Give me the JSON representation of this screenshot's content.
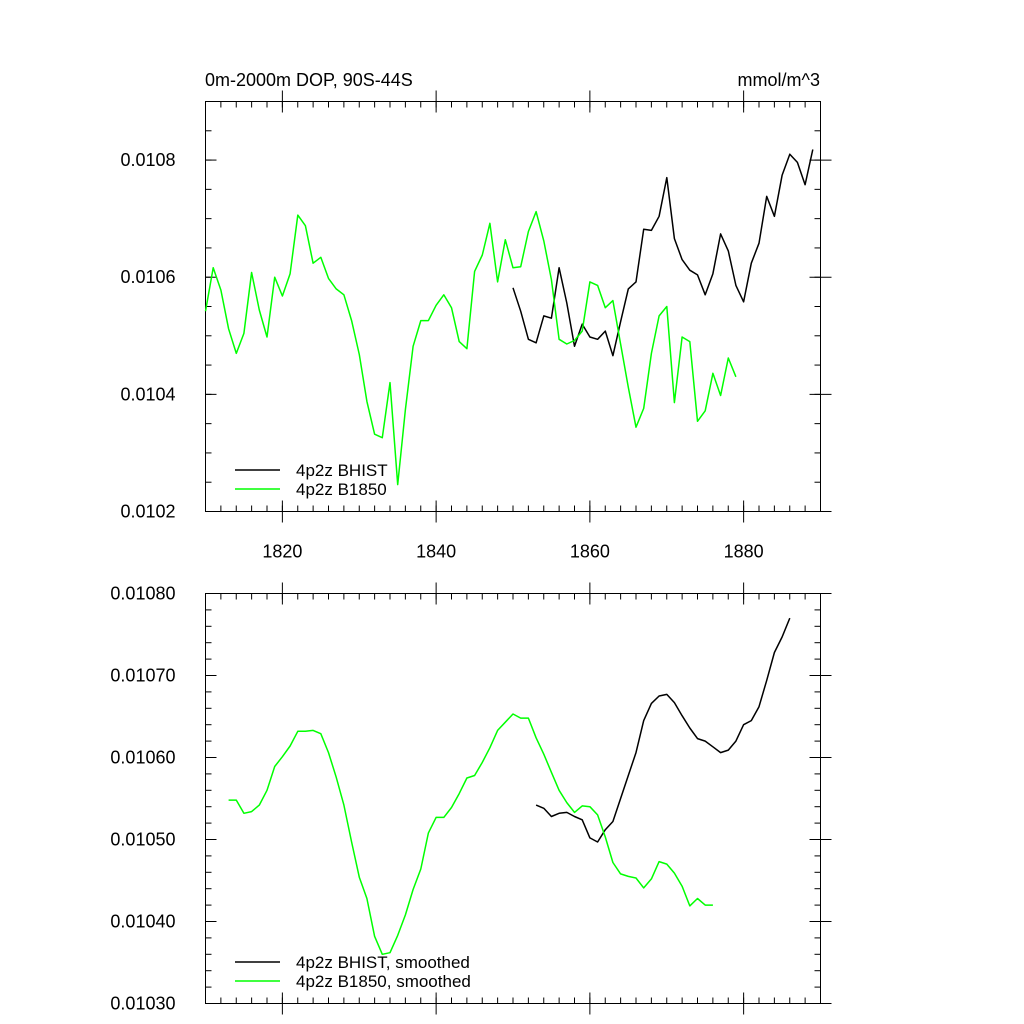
{
  "chart_data": [
    {
      "type": "line",
      "title_left": "0m-2000m DOP, 90S-44S",
      "title_right": "mmol/m^3",
      "xlim": [
        1810,
        1890
      ],
      "ylim": [
        0.0102,
        0.0109
      ],
      "xticks": [
        1820,
        1840,
        1860,
        1880
      ],
      "xtick_labels": [
        "1820",
        "1840",
        "1860",
        "1880"
      ],
      "yticks": [
        0.0102,
        0.0104,
        0.0106,
        0.0108
      ],
      "ytick_labels": [
        "0.0102",
        "0.0104",
        "0.0106",
        "0.0108"
      ],
      "xminor": 2,
      "yminor": 5e-05,
      "grid": false,
      "legend_position": "bottom-left",
      "series": [
        {
          "name": "4p2z BHIST",
          "color": "#000000",
          "x": [
            1850,
            1851,
            1852,
            1853,
            1854,
            1855,
            1856,
            1857,
            1858,
            1859,
            1860,
            1861,
            1862,
            1863,
            1864,
            1865,
            1866,
            1867,
            1868,
            1869,
            1870,
            1871,
            1872,
            1873,
            1874,
            1875,
            1876,
            1877,
            1878,
            1879,
            1880,
            1881,
            1882,
            1883,
            1884,
            1885,
            1886,
            1887,
            1888,
            1889
          ],
          "y": [
            0.010582,
            0.010542,
            0.010494,
            0.010488,
            0.010534,
            0.01053,
            0.010616,
            0.010556,
            0.010482,
            0.01052,
            0.010498,
            0.010494,
            0.010508,
            0.010466,
            0.010524,
            0.01058,
            0.010592,
            0.010682,
            0.01068,
            0.010704,
            0.01077,
            0.010666,
            0.01063,
            0.010612,
            0.010604,
            0.01057,
            0.010606,
            0.010674,
            0.010645,
            0.010586,
            0.010558,
            0.010624,
            0.010658,
            0.010738,
            0.010704,
            0.010774,
            0.01081,
            0.010796,
            0.010758,
            0.010818
          ]
        },
        {
          "name": "4p2z B1850",
          "color": "#00ff00",
          "x": [
            1810,
            1811,
            1812,
            1813,
            1814,
            1815,
            1816,
            1817,
            1818,
            1819,
            1820,
            1821,
            1822,
            1823,
            1824,
            1825,
            1826,
            1827,
            1828,
            1829,
            1830,
            1831,
            1832,
            1833,
            1834,
            1835,
            1836,
            1837,
            1838,
            1839,
            1840,
            1841,
            1842,
            1843,
            1844,
            1845,
            1846,
            1847,
            1848,
            1849,
            1850,
            1851,
            1852,
            1853,
            1854,
            1855,
            1856,
            1857,
            1858,
            1859,
            1860,
            1861,
            1862,
            1863,
            1864,
            1865,
            1866,
            1867,
            1868,
            1869,
            1870,
            1871,
            1872,
            1873,
            1874,
            1875,
            1876,
            1877,
            1878,
            1879
          ],
          "y": [
            0.010542,
            0.010616,
            0.010578,
            0.010512,
            0.01047,
            0.010504,
            0.010608,
            0.010544,
            0.010498,
            0.0106,
            0.010568,
            0.010606,
            0.010706,
            0.010688,
            0.010624,
            0.010634,
            0.010598,
            0.01058,
            0.01057,
            0.010526,
            0.010468,
            0.010388,
            0.010332,
            0.010326,
            0.01042,
            0.010246,
            0.010374,
            0.010482,
            0.010526,
            0.010526,
            0.010552,
            0.01057,
            0.010548,
            0.01049,
            0.010478,
            0.01061,
            0.010638,
            0.010692,
            0.010592,
            0.010664,
            0.010616,
            0.010618,
            0.010678,
            0.010712,
            0.010662,
            0.010596,
            0.010494,
            0.010486,
            0.010492,
            0.010508,
            0.010592,
            0.010586,
            0.010548,
            0.01056,
            0.010486,
            0.010412,
            0.010344,
            0.010376,
            0.01047,
            0.010534,
            0.01055,
            0.010386,
            0.010498,
            0.01049,
            0.010354,
            0.010372,
            0.010436,
            0.010398,
            0.010462,
            0.01043
          ]
        }
      ]
    },
    {
      "type": "line",
      "xlim": [
        1810,
        1890
      ],
      "ylim": [
        0.0103,
        0.0108
      ],
      "xticks": [
        1820,
        1840,
        1860,
        1880
      ],
      "yticks": [
        0.0103,
        0.0104,
        0.0105,
        0.0106,
        0.0107,
        0.0108
      ],
      "ytick_labels": [
        "0.01030",
        "0.01040",
        "0.01050",
        "0.01060",
        "0.01070",
        "0.01080"
      ],
      "xminor": 2,
      "yminor": 2e-05,
      "grid": false,
      "legend_position": "bottom-left",
      "series": [
        {
          "name": "4p2z BHIST, smoothed",
          "color": "#000000",
          "x": [
            1853,
            1854,
            1855,
            1856,
            1857,
            1858,
            1859,
            1860,
            1861,
            1862,
            1863,
            1864,
            1865,
            1866,
            1867,
            1868,
            1869,
            1870,
            1871,
            1872,
            1873,
            1874,
            1875,
            1876,
            1877,
            1878,
            1879,
            1880,
            1881,
            1882,
            1883,
            1884,
            1885,
            1886
          ],
          "y": [
            0.010542,
            0.010538,
            0.010528,
            0.010532,
            0.010533,
            0.010528,
            0.010524,
            0.010502,
            0.010497,
            0.010512,
            0.010522,
            0.01055,
            0.010578,
            0.010606,
            0.010645,
            0.010666,
            0.010675,
            0.010677,
            0.010667,
            0.010651,
            0.010636,
            0.010623,
            0.01062,
            0.010613,
            0.010606,
            0.010609,
            0.01062,
            0.01064,
            0.010645,
            0.010662,
            0.010694,
            0.010728,
            0.010747,
            0.01077
          ]
        },
        {
          "name": "4p2z B1850, smoothed",
          "color": "#00ff00",
          "x": [
            1813,
            1814,
            1815,
            1816,
            1817,
            1818,
            1819,
            1820,
            1821,
            1822,
            1823,
            1824,
            1825,
            1826,
            1827,
            1828,
            1829,
            1830,
            1831,
            1832,
            1833,
            1834,
            1835,
            1836,
            1837,
            1838,
            1839,
            1840,
            1841,
            1842,
            1843,
            1844,
            1845,
            1846,
            1847,
            1848,
            1849,
            1850,
            1851,
            1852,
            1853,
            1854,
            1855,
            1856,
            1857,
            1858,
            1859,
            1860,
            1861,
            1862,
            1863,
            1864,
            1865,
            1866,
            1867,
            1868,
            1869,
            1870,
            1871,
            1872,
            1873,
            1874,
            1875,
            1876
          ],
          "y": [
            0.010548,
            0.010548,
            0.010532,
            0.010534,
            0.010542,
            0.01056,
            0.010589,
            0.010601,
            0.010614,
            0.010632,
            0.010632,
            0.010633,
            0.010629,
            0.010606,
            0.010576,
            0.010542,
            0.010497,
            0.010454,
            0.010428,
            0.010382,
            0.01036,
            0.010362,
            0.010383,
            0.010408,
            0.010439,
            0.010464,
            0.010508,
            0.010527,
            0.010527,
            0.010539,
            0.010556,
            0.010575,
            0.010578,
            0.010594,
            0.010612,
            0.010633,
            0.010643,
            0.010653,
            0.010648,
            0.010648,
            0.010624,
            0.010604,
            0.010582,
            0.01056,
            0.010545,
            0.010533,
            0.010541,
            0.01054,
            0.01053,
            0.010503,
            0.010472,
            0.010458,
            0.010455,
            0.010453,
            0.010441,
            0.010452,
            0.010473,
            0.01047,
            0.010459,
            0.010443,
            0.010419,
            0.010428,
            0.01042,
            0.01042
          ]
        }
      ]
    }
  ]
}
